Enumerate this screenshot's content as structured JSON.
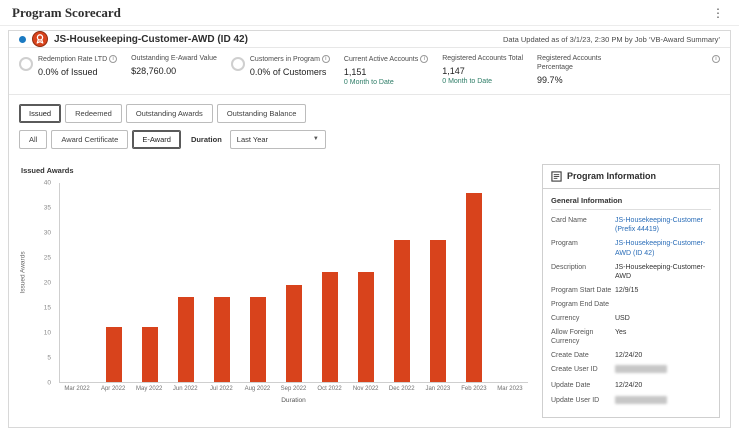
{
  "app": {
    "title": "Program Scorecard"
  },
  "header": {
    "program_title": "JS-Housekeeping-Customer-AWD (ID 42)",
    "data_updated": "Data Updated as of 3/1/23, 2:30 PM by Job ‘VB-Award Summary’"
  },
  "kpis": [
    {
      "label": "Redemption Rate LTD",
      "value": "0.0% of Issued",
      "has_info": true,
      "has_ring": true
    },
    {
      "label": "Outstanding E-Award Value",
      "value": "$28,760.00"
    },
    {
      "label": "Customers in Program",
      "value": "0.0% of Customers",
      "has_info": true,
      "has_ring": true
    },
    {
      "label": "Current Active Accounts",
      "value": "1,151",
      "sub": "0 Month to Date",
      "has_info": true
    },
    {
      "label": "Registered Accounts Total",
      "value": "1,147",
      "sub": "0 Month to Date"
    },
    {
      "label": "Registered Accounts Percentage",
      "value": "99.7%"
    }
  ],
  "filters": {
    "row1": [
      "Issued",
      "Redeemed",
      "Outstanding Awards",
      "Outstanding Balance"
    ],
    "row1_selected": "Issued",
    "row2": [
      "All",
      "Award Certificate",
      "E-Award"
    ],
    "row2_selected": "E-Award",
    "duration_label": "Duration",
    "duration_value": "Last Year"
  },
  "chart_data": {
    "type": "bar",
    "title": "Issued Awards",
    "xlabel": "Duration",
    "ylabel": "Issued Awards",
    "categories": [
      "Mar 2022",
      "Apr 2022",
      "May 2022",
      "Jun 2022",
      "Jul 2022",
      "Aug 2022",
      "Sep 2022",
      "Oct 2022",
      "Nov 2022",
      "Dec 2022",
      "Jan 2023",
      "Feb 2023",
      "Mar 2023"
    ],
    "values": [
      0,
      11,
      11,
      17,
      17,
      17,
      19.5,
      22,
      22,
      28.5,
      28.5,
      38,
      0
    ],
    "ylim": [
      0,
      40
    ],
    "yticks": [
      0,
      5,
      10,
      15,
      20,
      25,
      30,
      35,
      40
    ],
    "grid": false,
    "legend": "none"
  },
  "program_info": {
    "title": "Program Information",
    "section": "General Information",
    "rows": [
      {
        "label": "Card Name",
        "value": "JS-Housekeeping-Customer (Prefix 44419)",
        "link": true
      },
      {
        "label": "Program",
        "value": "JS-Housekeeping-Customer-AWD (ID 42)",
        "link": true
      },
      {
        "label": "Description",
        "value": "JS-Housekeeping-Customer-AWD"
      },
      {
        "label": "Program Start Date",
        "value": "12/9/15"
      },
      {
        "label": "Program End Date",
        "value": ""
      },
      {
        "label": "Currency",
        "value": "USD"
      },
      {
        "label": "Allow Foreign Currency",
        "value": "Yes"
      },
      {
        "label": "Create Date",
        "value": "12/24/20"
      },
      {
        "label": "Create User ID",
        "value": "",
        "redacted": true
      },
      {
        "label": "Update Date",
        "value": "12/24/20"
      },
      {
        "label": "Update User ID",
        "value": "",
        "redacted": true
      }
    ]
  },
  "colors": {
    "bar": "#d8431c",
    "teal": "#2e7d67",
    "link": "#2a6db8",
    "accent": "#1b7ac2"
  }
}
